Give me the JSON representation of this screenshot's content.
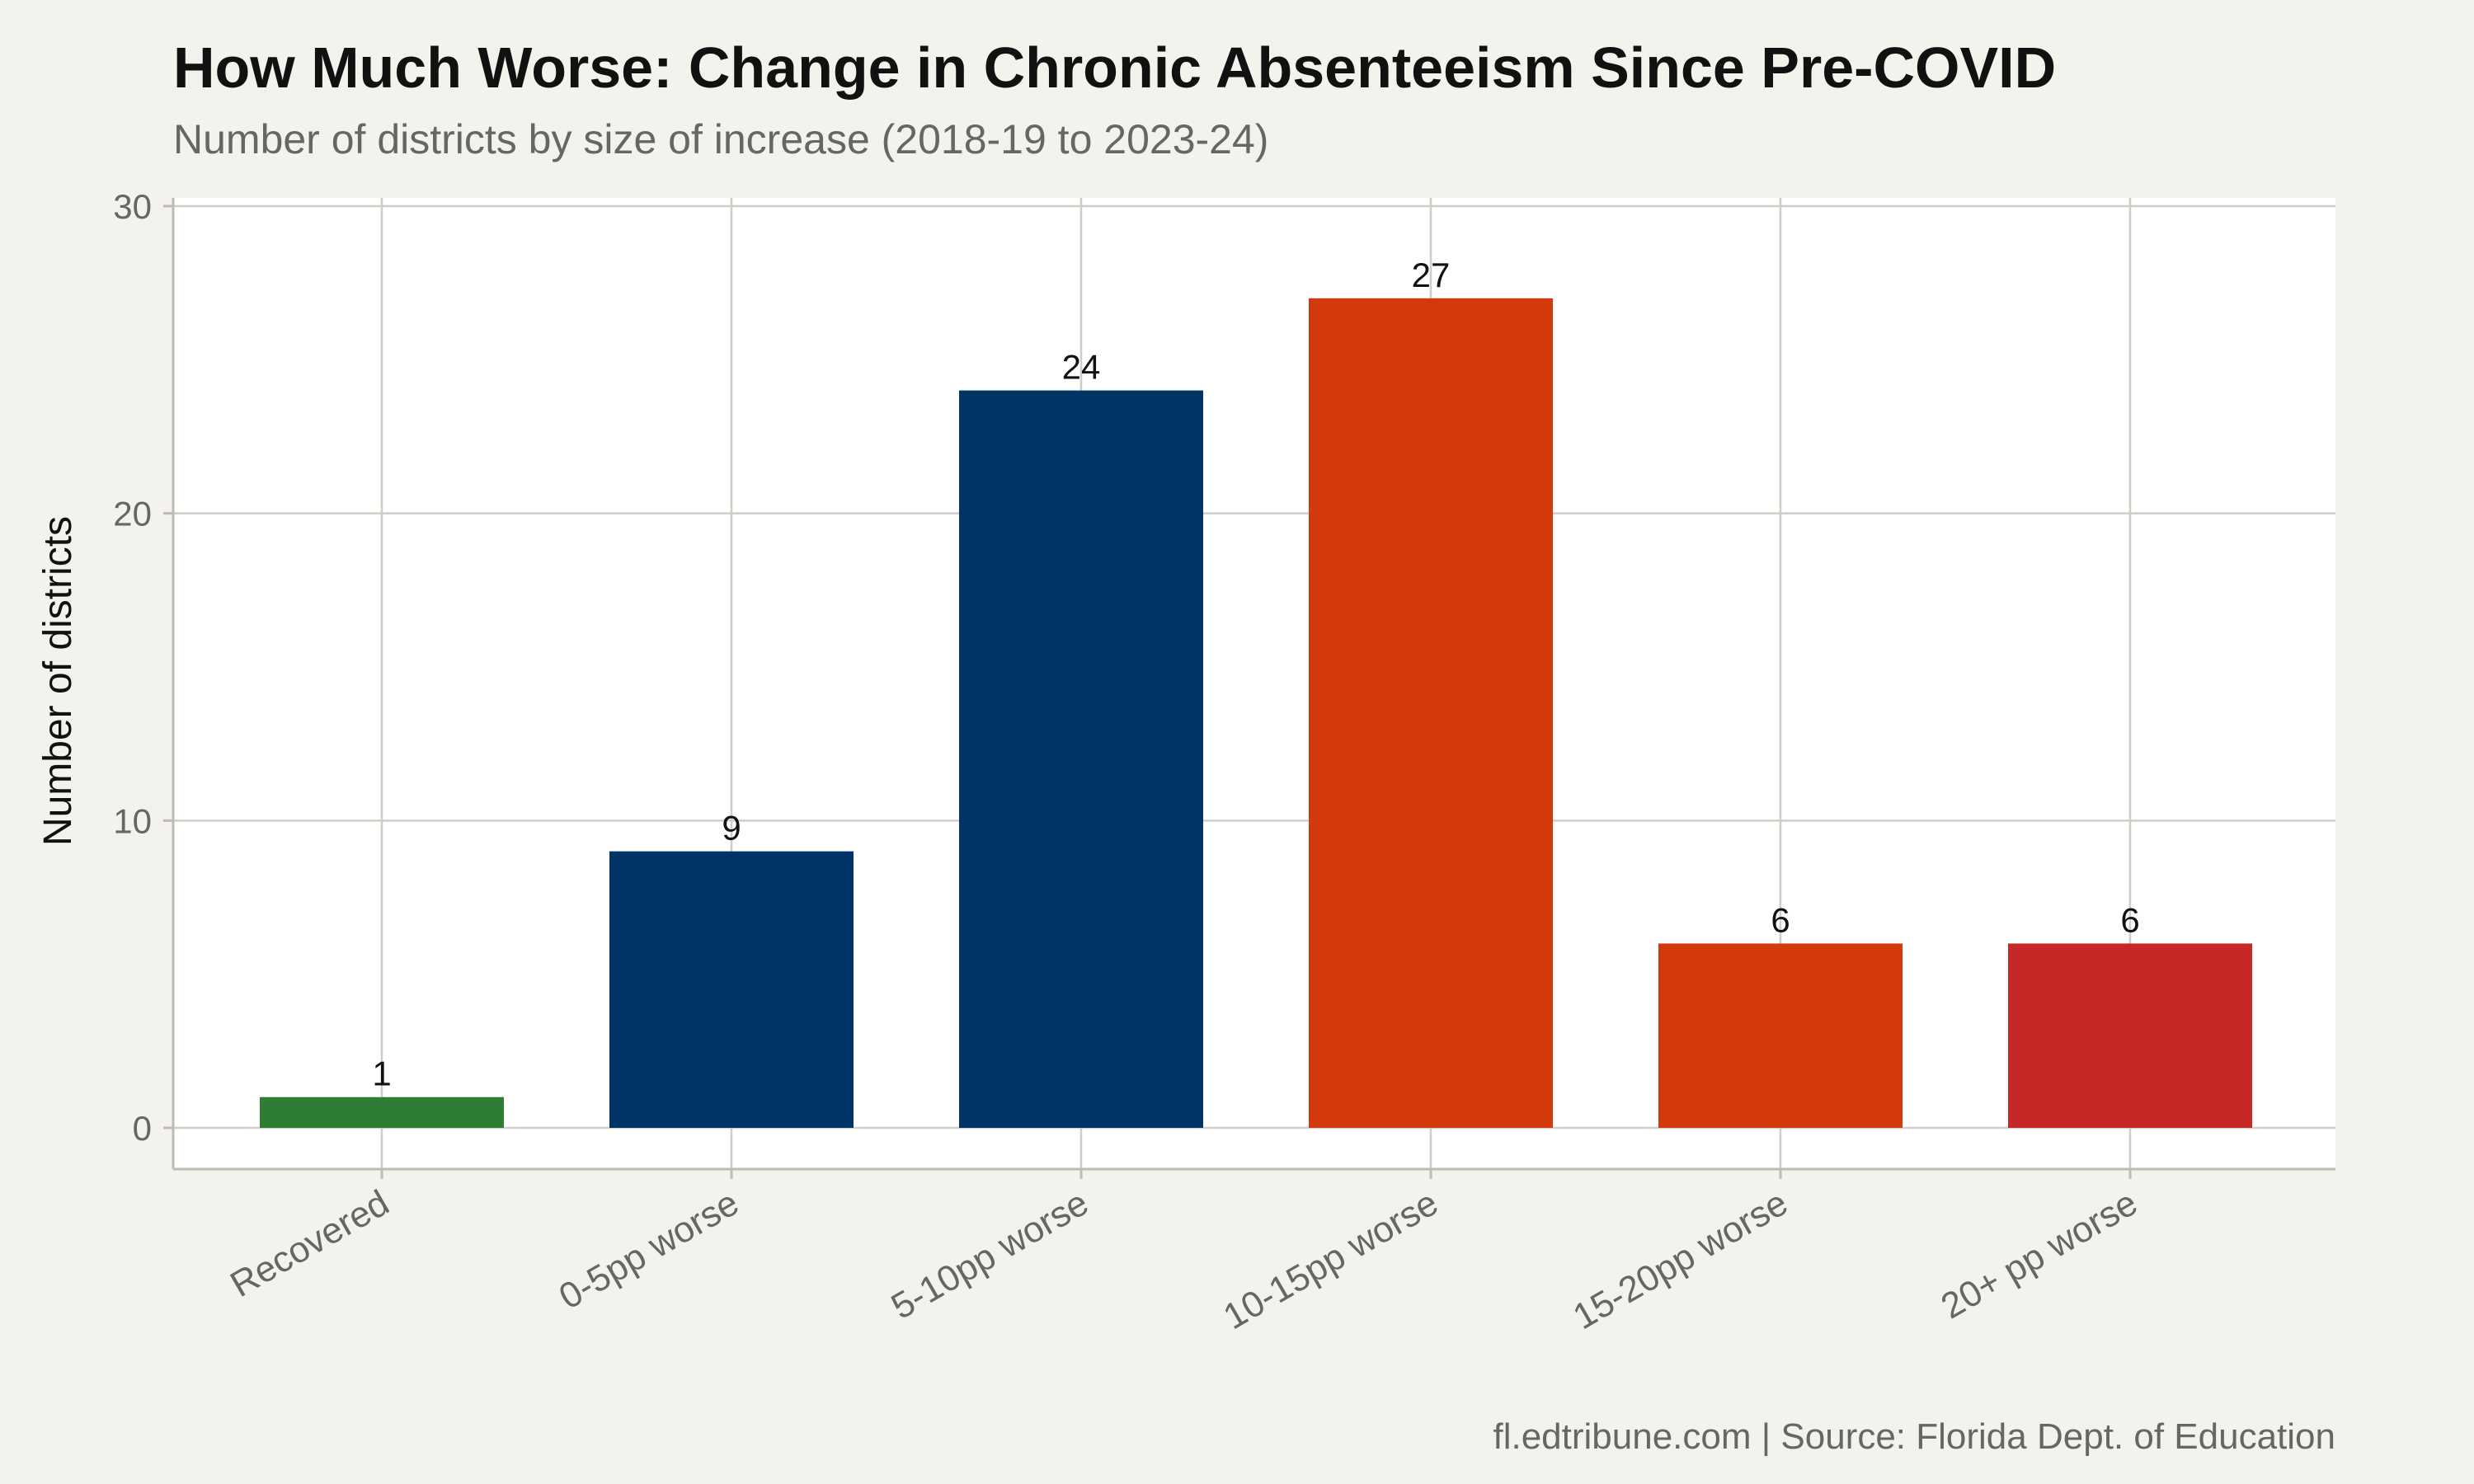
{
  "title": "How Much Worse: Change in Chronic Absenteeism Since Pre-COVID",
  "subtitle": "Number of districts by size of increase (2018-19 to 2023-24)",
  "caption": "fl.edtribune.com | Source: Florida Dept. of Education",
  "colors": {
    "background": "#f4f2ed",
    "panel": "#ffffff",
    "grid": "#cfcdc6",
    "recovered": "#2e7d32",
    "navy": "#003366",
    "orange": "#d4380d",
    "red": "#c62828"
  },
  "chart_data": {
    "type": "bar",
    "title": "How Much Worse: Change in Chronic Absenteeism Since Pre-COVID",
    "subtitle": "Number of districts by size of increase (2018-19 to 2023-24)",
    "xlabel": "",
    "ylabel": "Number of districts",
    "categories": [
      "Recovered",
      "0-5pp worse",
      "5-10pp worse",
      "10-15pp worse",
      "15-20pp worse",
      "20+ pp worse"
    ],
    "values": [
      1,
      9,
      24,
      27,
      6,
      6
    ],
    "bar_colors": [
      "#2e7d32",
      "#003366",
      "#003366",
      "#d4380d",
      "#d4380d",
      "#c62828"
    ],
    "data_labels": [
      "1",
      "9",
      "24",
      "27",
      "6",
      "6"
    ],
    "ylim": [
      0,
      30
    ],
    "yticks": [
      0,
      10,
      20,
      30
    ],
    "ytick_labels": [
      "0",
      "10",
      "20",
      "30"
    ],
    "grid": true,
    "legend": "none"
  }
}
